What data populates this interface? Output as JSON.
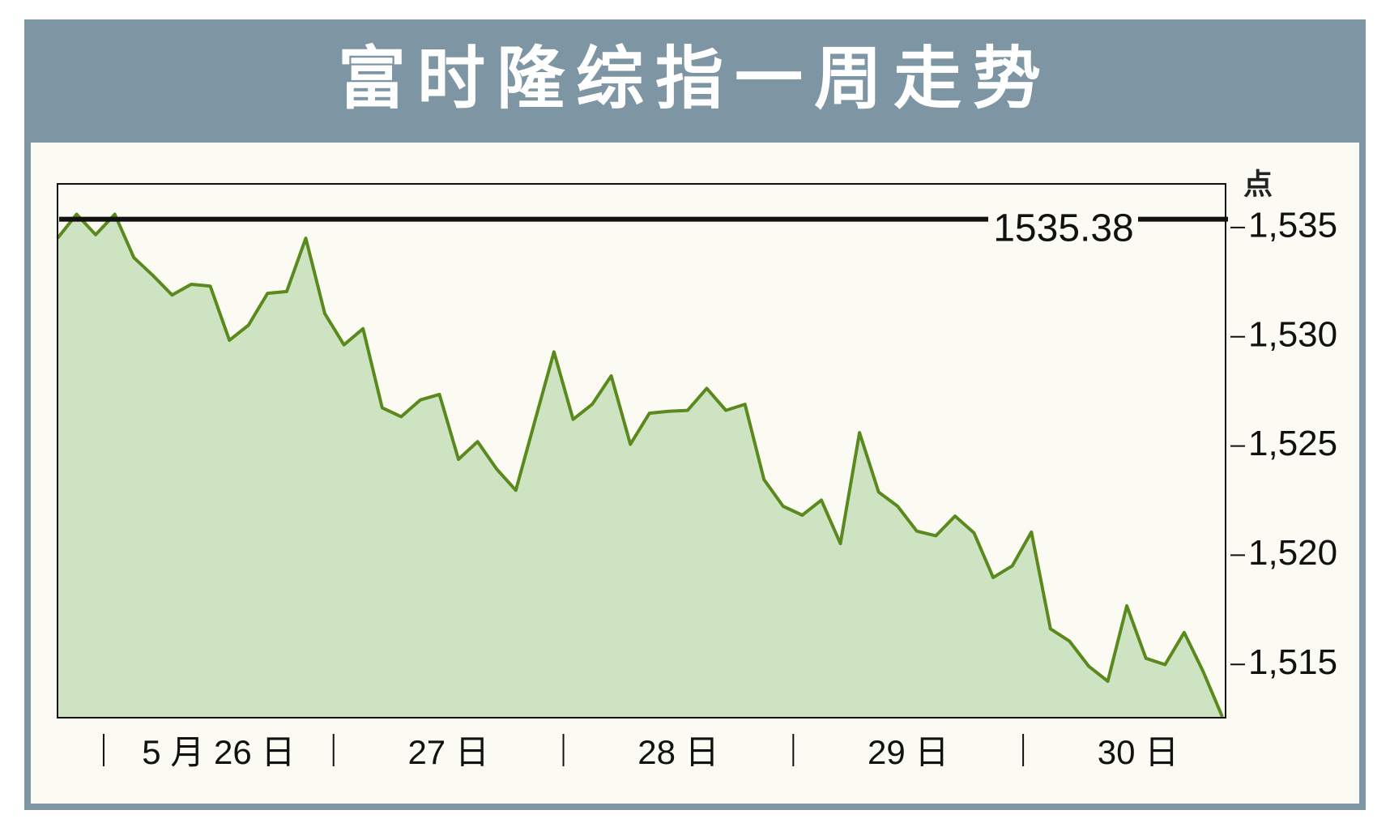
{
  "chart_data": {
    "type": "line",
    "title": "富时隆综指一周走势",
    "y_unit": "点",
    "x_tick_labels": [
      "5 月 26 日",
      "27 日",
      "28 日",
      "29 日",
      "30 日"
    ],
    "values": [
      1534.51,
      1535.61,
      1534.67,
      1535.61,
      1533.62,
      1532.8,
      1531.91,
      1532.4,
      1532.32,
      1529.84,
      1530.53,
      1531.99,
      1532.07,
      1534.51,
      1531.06,
      1529.63,
      1530.37,
      1526.75,
      1526.34,
      1527.11,
      1527.36,
      1524.39,
      1525.2,
      1523.94,
      1522.97,
      1526.14,
      1529.31,
      1526.22,
      1526.91,
      1528.21,
      1525.08,
      1526.5,
      1526.59,
      1526.63,
      1527.64,
      1526.63,
      1526.91,
      1523.46,
      1522.24,
      1521.83,
      1522.52,
      1520.53,
      1525.61,
      1522.89,
      1522.24,
      1521.1,
      1520.89,
      1521.79,
      1521.02,
      1518.98,
      1519.51,
      1521.06,
      1516.63,
      1516.06,
      1514.92,
      1514.23,
      1517.68,
      1515.28,
      1514.99,
      1516.46,
      1514.67,
      1512.6
    ],
    "color": "#5a8a1e",
    "fill_color": "#cde3c2",
    "ylim": [
      1512.56,
      1537
    ],
    "yticks": [
      {
        "value": 1515,
        "label": "1,515"
      },
      {
        "value": 1520,
        "label": "1,520"
      },
      {
        "value": 1525,
        "label": "1,525"
      },
      {
        "value": 1530,
        "label": "1,530"
      },
      {
        "value": 1535,
        "label": "1,535"
      }
    ],
    "reference_line": {
      "value": 1535.38,
      "label": "1535.38"
    }
  }
}
